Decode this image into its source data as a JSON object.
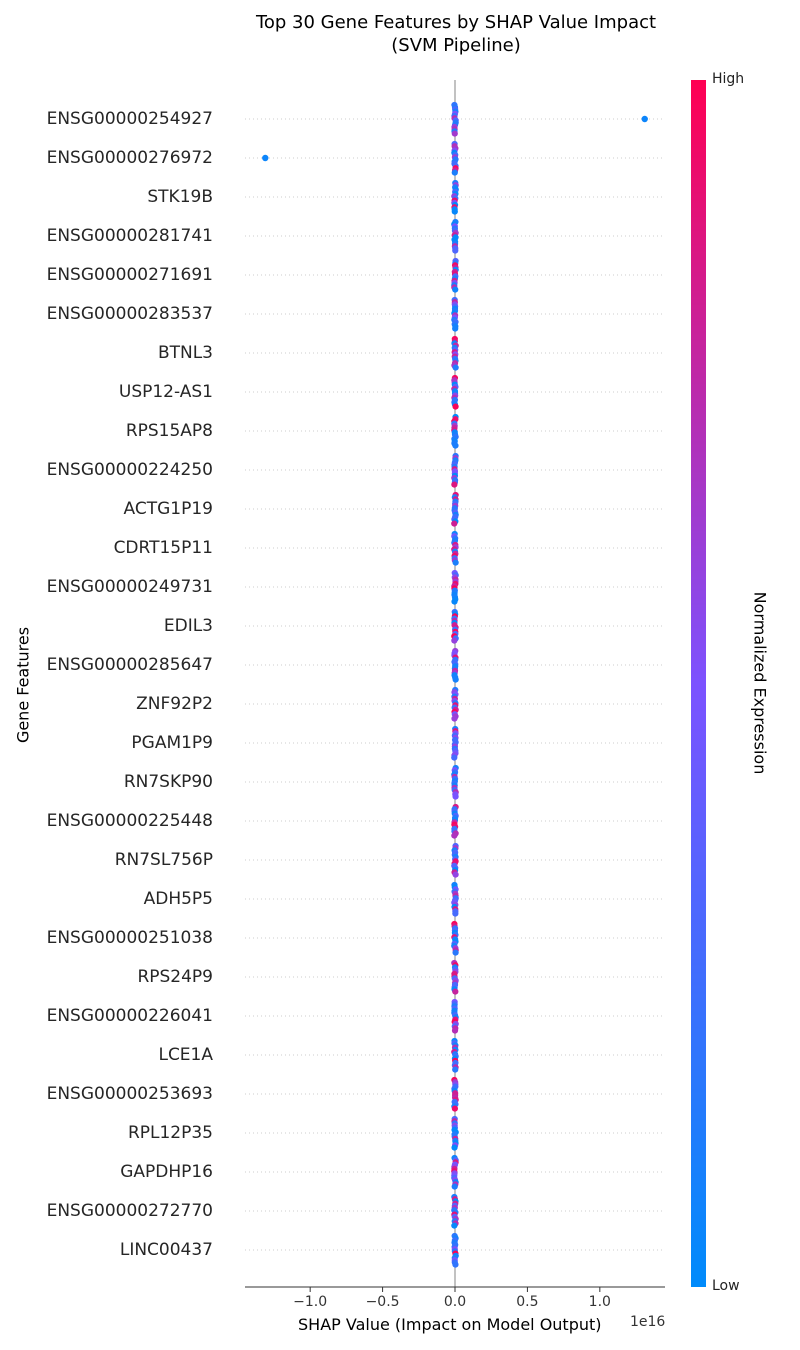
{
  "chart_data": {
    "type": "scatter",
    "subtype": "shap-beeswarm-summary",
    "title": "Top 30 Gene Features by SHAP Value Impact",
    "subtitle": "(SVM Pipeline)",
    "xlabel": "SHAP Value (Impact on Model Output)",
    "x_offset_label": "1e16",
    "ylabel": "Gene Features",
    "xlim": [
      -1.45,
      1.45
    ],
    "x_ticks": [
      -1.0,
      -0.5,
      0.0,
      0.5,
      1.0
    ],
    "x_tick_labels": [
      "−1.0",
      "−0.5",
      "0.0",
      "0.5",
      "1.0"
    ],
    "features": [
      "ENSG00000254927",
      "ENSG00000276972",
      "STK19B",
      "ENSG00000281741",
      "ENSG00000271691",
      "ENSG00000283537",
      "BTNL3",
      "USP12-AS1",
      "RPS15AP8",
      "ENSG00000224250",
      "ACTG1P19",
      "CDRT15P11",
      "ENSG00000249731",
      "EDIL3",
      "ENSG00000285647",
      "ZNF92P2",
      "PGAM1P9",
      "RN7SKP90",
      "ENSG00000225448",
      "RN7SL756P",
      "ADH5P5",
      "ENSG00000251038",
      "RPS24P9",
      "ENSG00000226041",
      "LCE1A",
      "ENSG00000253693",
      "RPL12P35",
      "GAPDHP16",
      "ENSG00000272770",
      "LINC00437"
    ],
    "outliers": [
      {
        "feature": "ENSG00000254927",
        "x": 1.31,
        "expression": 0.05
      },
      {
        "feature": "ENSG00000276972",
        "x": -1.31,
        "expression": 0.05
      }
    ],
    "cluster_x": 0.0,
    "colorbar": {
      "label": "Normalized Expression",
      "high_label": "High",
      "low_label": "Low",
      "low_color": "#008bfb",
      "high_color": "#ff0052"
    },
    "grid": "dotted horizontal row lines",
    "legend": "colorbar on right"
  }
}
